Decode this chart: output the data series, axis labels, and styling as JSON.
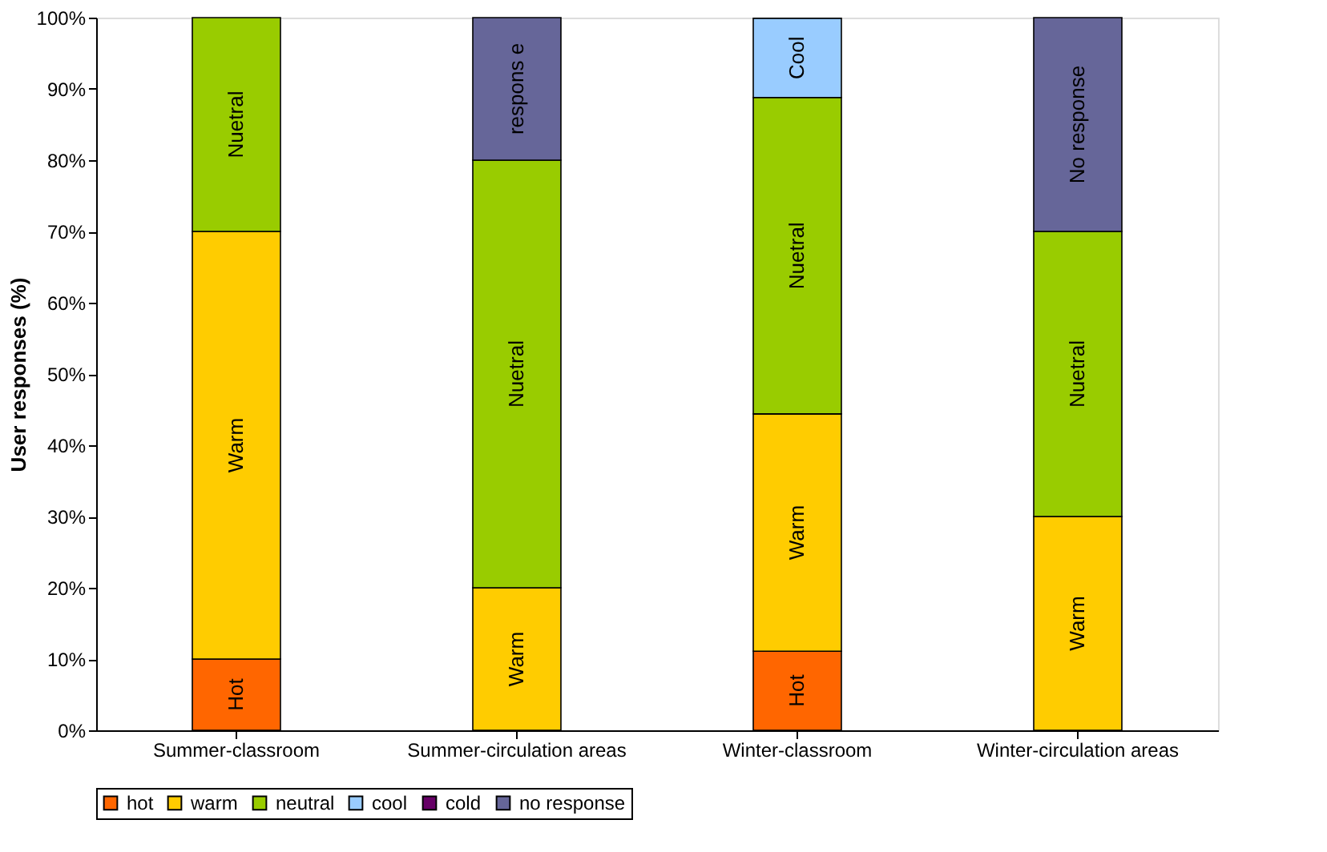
{
  "chart_data": {
    "type": "bar",
    "stacked": true,
    "ylabel": "User responses (%)",
    "categories": [
      "Summer-classroom",
      "Summer-circulation areas",
      "Winter-classroom",
      "Winter-circulation areas"
    ],
    "series": [
      {
        "name": "hot",
        "color": "#ff6600",
        "values": [
          10,
          null,
          11.1,
          null
        ],
        "value_labels": [
          "Hot",
          null,
          "Hot",
          null
        ]
      },
      {
        "name": "warm",
        "color": "#ffcc00",
        "values": [
          60,
          20,
          33.3,
          30
        ],
        "value_labels": [
          "Warm",
          "Warm",
          "Warm",
          "Warm"
        ]
      },
      {
        "name": "neutral",
        "color": "#99cc00",
        "values": [
          30,
          60,
          44.4,
          40
        ],
        "value_labels": [
          "Nuetral",
          "Nuetral",
          "Nuetral",
          "Nuetral"
        ]
      },
      {
        "name": "cool",
        "color": "#99ccff",
        "values": [
          null,
          null,
          11.1,
          null
        ],
        "value_labels": [
          null,
          null,
          "Cool",
          null
        ]
      },
      {
        "name": "cold",
        "color": "#660066",
        "values": [
          null,
          null,
          null,
          null
        ]
      },
      {
        "name": "no response",
        "color": "#666699",
        "values": [
          null,
          20,
          null,
          30
        ],
        "value_labels": [
          null,
          "respons e",
          null,
          "No response"
        ]
      }
    ],
    "ylim": [
      0,
      100
    ],
    "yticks": [
      {
        "value": 0,
        "label": "0%"
      },
      {
        "value": 10,
        "label": "10%"
      },
      {
        "value": 20,
        "label": "20%"
      },
      {
        "value": 30,
        "label": "30%"
      },
      {
        "value": 40,
        "label": "40%"
      },
      {
        "value": 50,
        "label": "50%"
      },
      {
        "value": 60,
        "label": "60%"
      },
      {
        "value": 70,
        "label": "70%"
      },
      {
        "value": 80,
        "label": "80%"
      },
      {
        "value": 90,
        "label": "90%"
      },
      {
        "value": 100,
        "label": "100%"
      }
    ],
    "grid": false,
    "legend": "bottom"
  }
}
